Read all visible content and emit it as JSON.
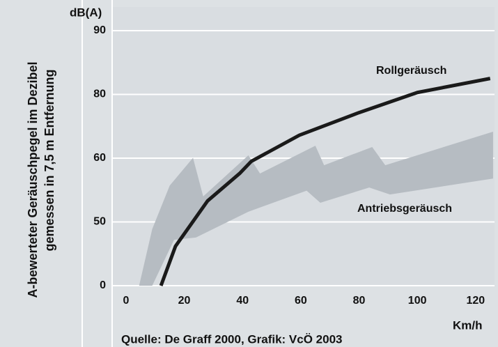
{
  "chart_data": {
    "type": "line",
    "ylabel": [
      "A-bewerteter Geräuschpegel im Dezibel",
      "gemessen in 7,5 m Entfernung"
    ],
    "yunit": "dB(A)",
    "xlabel": "Km/h",
    "source": "Quelle:  De Graff 2000, Grafik:  VcÖ 2003",
    "xlim": [
      -5,
      126.5
    ],
    "ylim": [
      0,
      90
    ],
    "xticks": [
      0,
      20,
      40,
      60,
      80,
      100,
      120
    ],
    "yticks": [
      0,
      50,
      60,
      80,
      90
    ],
    "grid": true,
    "series": [
      {
        "name": "Rollgeräusch",
        "color": "#1a1a1a",
        "x": [
          12,
          17,
          28,
          39,
          43,
          59.5,
          80,
          100,
          125
        ],
        "values": [
          0,
          31,
          53.3,
          57.6,
          59.5,
          67.2,
          74.3,
          80.3,
          82.5
        ]
      }
    ],
    "band": {
      "name": "Antriebsgeräusch",
      "color": "#b6bcc2",
      "upper": {
        "x": [
          4.5,
          9,
          15,
          23,
          26.5,
          42,
          46,
          65,
          68,
          84.5,
          89,
          126
        ],
        "values": [
          0,
          44.4,
          55.7,
          60.1,
          54,
          60.9,
          57.6,
          63.9,
          58.9,
          63.5,
          58.9,
          68.3
        ]
      },
      "lower": {
        "x": [
          9,
          16.5,
          24,
          42,
          62,
          66.7,
          83.5,
          90.6,
          126
        ],
        "values": [
          0,
          36,
          37.8,
          51.6,
          54.9,
          53,
          55.4,
          54.3,
          56.8
        ]
      }
    }
  }
}
